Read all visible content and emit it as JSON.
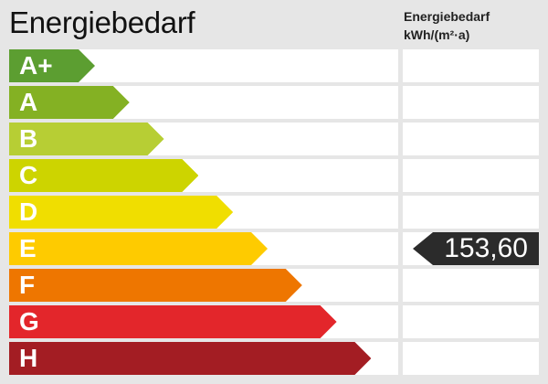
{
  "title": "Energiebedarf",
  "column_header": {
    "line1": "Energiebedarf",
    "line2": "kWh/(m²·a)"
  },
  "chart_data": {
    "type": "bar",
    "title": "Energiebedarf",
    "categories": [
      "A+",
      "A",
      "B",
      "C",
      "D",
      "E",
      "F",
      "G",
      "H"
    ],
    "colors": [
      "#5c9e31",
      "#84b123",
      "#b7ce34",
      "#cdd400",
      "#f0de00",
      "#fecb00",
      "#ee7600",
      "#e3262b",
      "#a31d23"
    ],
    "value": "153,60",
    "value_class": "E",
    "unit": "kWh/(m²·a)"
  }
}
